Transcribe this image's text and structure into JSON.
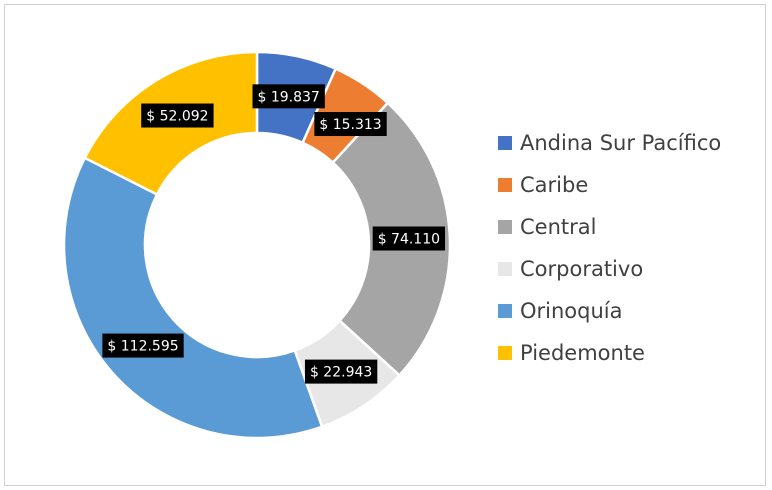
{
  "chart_data": {
    "type": "pie",
    "variant": "donut",
    "categories": [
      "Andina Sur Pacífico",
      "Caribe",
      "Central",
      "Corporativo",
      "Orinoquía",
      "Piedemonte"
    ],
    "values": [
      19837,
      15313,
      74110,
      22943,
      112595,
      52092
    ],
    "data_labels": [
      "$ 19.837",
      "$ 15.313",
      "$ 74.110",
      "$ 22.943",
      "$ 112.595",
      "$ 52.092"
    ],
    "colors": [
      "#4472C4",
      "#ED7D31",
      "#A5A5A5",
      "#E7E7E7",
      "#5B9BD5",
      "#FFC000"
    ],
    "legend_position": "right",
    "title": ""
  }
}
